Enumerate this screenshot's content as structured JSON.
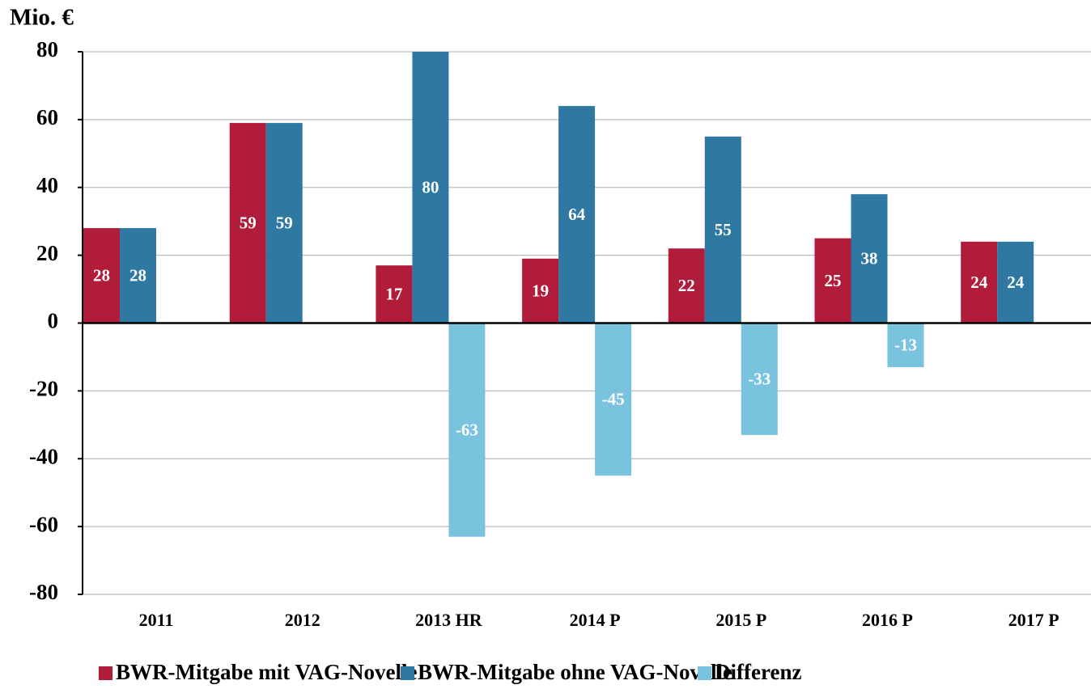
{
  "chart_data": {
    "type": "bar",
    "y_label": "Mio. €",
    "categories": [
      "2011",
      "2012",
      "2013 HR",
      "2014 P",
      "2015 P",
      "2016 P",
      "2017 P"
    ],
    "series": [
      {
        "name": "BWR-Mitgabe mit VAG-Novelle",
        "color": "#b01c3a",
        "values": [
          28,
          59,
          17,
          19,
          22,
          25,
          24
        ]
      },
      {
        "name": "BWR-Mitgabe ohne VAG-Novelle",
        "color": "#2e78a2",
        "values": [
          28,
          59,
          80,
          64,
          55,
          38,
          24
        ]
      },
      {
        "name": "Differenz",
        "color": "#7ac3df",
        "values": [
          null,
          null,
          -63,
          -45,
          -33,
          -13,
          null
        ]
      }
    ],
    "ylim": [
      -80,
      80
    ],
    "yticks": [
      -80,
      -60,
      -40,
      -20,
      0,
      20,
      40,
      60,
      80
    ],
    "grid": true,
    "legend": "bottom"
  }
}
